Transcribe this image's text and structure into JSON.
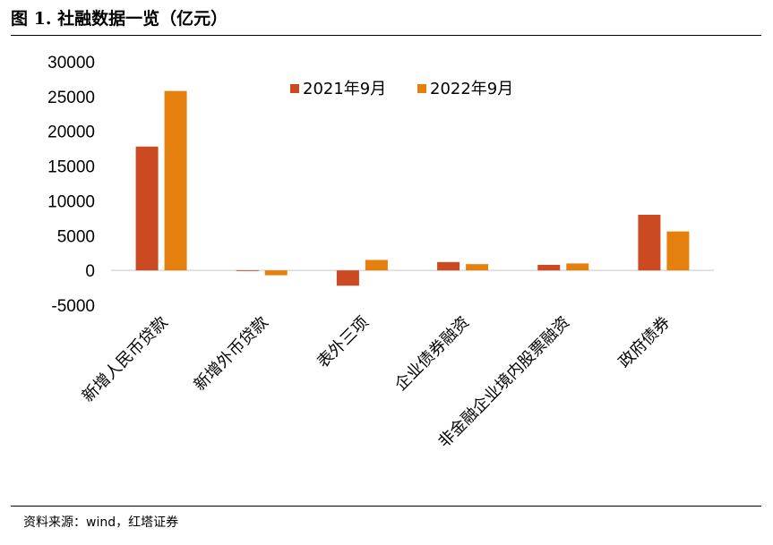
{
  "header": {
    "title": "图 1. 社融数据一览（亿元）"
  },
  "footer": {
    "source": "资料来源：wind，红塔证券"
  },
  "chart_data": {
    "type": "bar",
    "title": "图 1. 社融数据一览（亿元）",
    "xlabel": "",
    "ylabel": "",
    "ylim": [
      -5000,
      30000
    ],
    "yticks": [
      30000,
      25000,
      20000,
      15000,
      10000,
      5000,
      0,
      -5000
    ],
    "legend_position": "top",
    "categories": [
      "新增人民币贷款",
      "新增外币贷款",
      "表外三项",
      "企业债券融资",
      "非金融企业境内股票融资",
      "政府债券"
    ],
    "series": [
      {
        "name": "2021年9月",
        "color": "#cc4a22",
        "values": [
          17800,
          -100,
          -2200,
          1200,
          800,
          8000
        ]
      },
      {
        "name": "2022年9月",
        "color": "#e5800f",
        "values": [
          25800,
          -700,
          1500,
          900,
          1000,
          5600
        ]
      }
    ]
  }
}
